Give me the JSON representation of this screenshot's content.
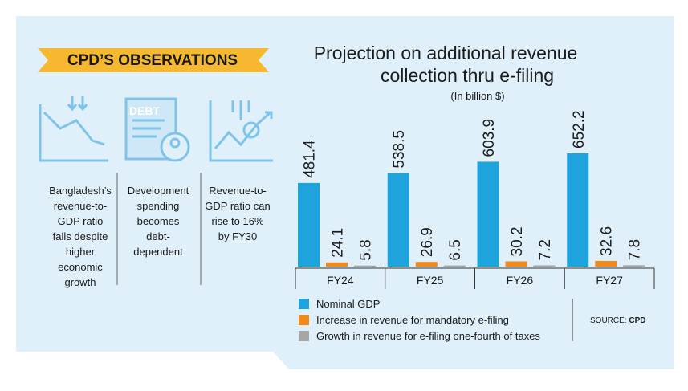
{
  "banner": "CPD’S OBSERVATIONS",
  "observations": [
    [
      "Bangladesh’s",
      "revenue-to-",
      "GDP ratio",
      "falls despite",
      "higher",
      "economic",
      "growth"
    ],
    [
      "Development",
      "spending",
      "becomes",
      "debt-",
      "dependent"
    ],
    [
      "Revenue-to-",
      "GDP ratio can",
      "rise to 16%",
      "by FY30"
    ]
  ],
  "icon_text": "DEBT",
  "source_label": "SOURCE:",
  "source": "CPD",
  "chart_data": {
    "type": "bar",
    "title": "Projection on additional revenue",
    "title_line2": "collection thru e-filing",
    "subtitle": "(In billion $)",
    "categories": [
      "FY24",
      "FY25",
      "FY26",
      "FY27"
    ],
    "series": [
      {
        "name": "Nominal GDP",
        "color": "#1fa3dc",
        "values": [
          481.4,
          538.5,
          603.9,
          652.2
        ]
      },
      {
        "name": "Increase in revenue for mandatory e-filing",
        "color": "#f08a1c",
        "values": [
          24.1,
          26.9,
          30.2,
          32.6
        ]
      },
      {
        "name": "Growth in revenue for e-filing one-fourth of taxes",
        "color": "#a6a6a6",
        "values": [
          5.8,
          6.5,
          7.2,
          7.8
        ]
      }
    ]
  }
}
